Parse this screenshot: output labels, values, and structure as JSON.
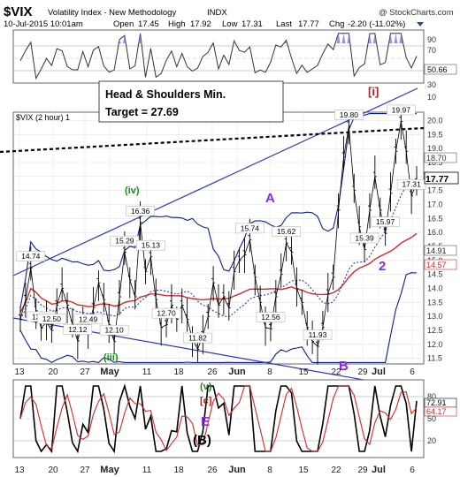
{
  "header": {
    "symbol": "$VIX",
    "name": "Volatility Index - New Methodology",
    "exchange": "INDX",
    "copyright": "@ StockCharts.com",
    "datetime": "10-Jul-2015 10:01am",
    "open_label": "Open",
    "open": "17.45",
    "high_label": "High",
    "high": "17.92",
    "low_label": "Low",
    "low": "17.31",
    "last_label": "Last",
    "last": "17.77",
    "chg_label": "Chg",
    "chg": "-2.20 (-11.02%)",
    "dropdown_icon": "triangle-down-icon"
  },
  "rsi_panel": {
    "ticks": [
      "90",
      "70",
      "50",
      "30",
      "10"
    ],
    "current_value": "50.66",
    "accent": "#d02a2a"
  },
  "annotation_box": {
    "line1": "Head & Shoulders Min.",
    "line2": "Target = 27.69"
  },
  "price_panel": {
    "subtitle": "$VIX (2 hour) 1",
    "y_ticks": [
      "20.0",
      "19.5",
      "19.0",
      "18.5",
      "18.0",
      "17.5",
      "17.0",
      "16.5",
      "16.0",
      "15.5",
      "15.0",
      "14.5",
      "14.0",
      "13.5",
      "13.0",
      "12.5",
      "12.0",
      "11.5"
    ],
    "right_labels": [
      {
        "text": "18.70",
        "color": "#333333"
      },
      {
        "text": "17.77",
        "color": "#000000"
      },
      {
        "text": "14.91",
        "color": "#222222"
      },
      {
        "text": "14.57",
        "color": "#d02a2a"
      }
    ],
    "wave_labels": [
      {
        "text": "[i]",
        "color": "#c41a1a"
      },
      {
        "text": "(iv)",
        "color": "#1a8a1a"
      },
      {
        "text": "A",
        "color": "#8a2be2"
      },
      {
        "text": "2",
        "color": "#8a2be2"
      },
      {
        "text": "(iii)",
        "color": "#1a8a1a"
      },
      {
        "text": "B",
        "color": "#8a2be2"
      }
    ],
    "price_labels": [
      "19.80",
      "19.97",
      "14.74",
      "16.36",
      "15.29",
      "15.13",
      "15.74",
      "15.62",
      "12.58",
      "12.50",
      "12.12",
      "12.49",
      "12.10",
      "12.70",
      "11.82",
      "12.56",
      "11.93",
      "15.39",
      "15.97",
      "17.31"
    ],
    "colors": {
      "price": "#000000",
      "upper_band": "#0a1f8a",
      "ma_red": "#d02a2a",
      "ma_blue_dotted": "#2a3ab8",
      "trendline": "#2a3ab8",
      "neckline": "#000000"
    }
  },
  "x_axis": {
    "labels": [
      "13",
      "20",
      "27",
      "May",
      "11",
      "18",
      "26",
      "Jun",
      "8",
      "15",
      "22",
      "29",
      "Jul",
      "6"
    ],
    "bold_labels": [
      "May",
      "Jun",
      "Jul"
    ]
  },
  "macd_panel": {
    "wave_labels": [
      {
        "text": "(v)",
        "color": "#1a8a1a"
      },
      {
        "text": "[c]",
        "color": "#c41a1a"
      },
      {
        "text": "E",
        "color": "#8a2be2"
      },
      {
        "text": "(B)",
        "color": "#000000"
      }
    ],
    "right_labels": [
      {
        "text": "72.91",
        "color": "#000000"
      },
      {
        "text": "64.17",
        "color": "#d02a2a"
      }
    ],
    "ticks": [
      "80",
      "50",
      "20"
    ]
  },
  "chart_data": {
    "type": "line",
    "title": "$VIX (2 hour)",
    "series": [
      {
        "name": "$VIX (2 hour)",
        "values": [
          12.9,
          13.6,
          14.74,
          13.2,
          12.58,
          12.8,
          12.5,
          13.4,
          14.0,
          13.4,
          12.7,
          12.12,
          12.9,
          12.49,
          13.3,
          14.2,
          13.6,
          12.7,
          12.1,
          13.7,
          15.29,
          14.3,
          13.7,
          16.36,
          14.6,
          15.13,
          13.6,
          12.6,
          12.7,
          13.4,
          12.9,
          13.4,
          12.9,
          12.2,
          11.82,
          12.3,
          13.0,
          14.2,
          13.4,
          13.7,
          13.3,
          14.6,
          15.0,
          15.2,
          15.74,
          14.4,
          13.5,
          12.6,
          12.56,
          13.7,
          14.5,
          15.62,
          15.3,
          14.0,
          13.5,
          12.6,
          12.1,
          11.93,
          12.6,
          13.8,
          14.4,
          16.8,
          18.7,
          19.8,
          17.5,
          16.2,
          15.39,
          16.8,
          18.0,
          16.8,
          15.97,
          17.4,
          18.9,
          19.97,
          18.9,
          17.31,
          17.77
        ]
      }
    ],
    "x_category_labels": [
      "13",
      "20",
      "27",
      "May",
      "11",
      "18",
      "26",
      "Jun",
      "8",
      "15",
      "22",
      "29",
      "Jul",
      "6"
    ],
    "ylim": [
      11.3,
      20.3
    ],
    "rsi_ylim": [
      10,
      90
    ],
    "rsi_current": 50.66,
    "macd_ylim": [
      0,
      100
    ],
    "macd_current": [
      72.91,
      64.17
    ],
    "grid": true,
    "legend": "none"
  }
}
